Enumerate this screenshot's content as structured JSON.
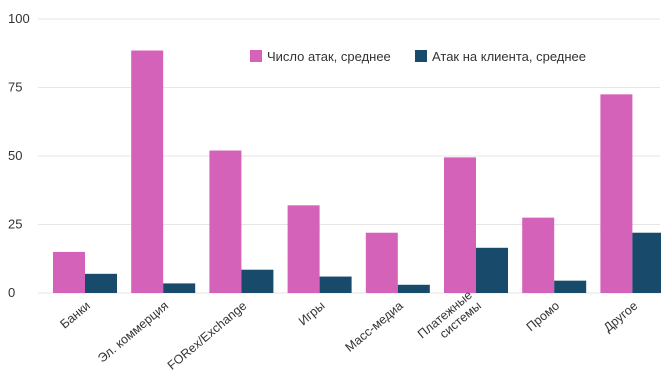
{
  "chart_data": {
    "type": "bar",
    "categories": [
      "Банки",
      "Эл. коммерция",
      "FORex/Exchange",
      "Игры",
      "Масс-медиа",
      "Платежные системы",
      "Промо",
      "Другое"
    ],
    "category_lines": [
      [
        "Банки"
      ],
      [
        "Эл. коммерция"
      ],
      [
        "FORex/Exchange"
      ],
      [
        "Игры"
      ],
      [
        "Масс-медиа"
      ],
      [
        "Платежные",
        "системы"
      ],
      [
        "Промо"
      ],
      [
        "Другое"
      ]
    ],
    "series": [
      {
        "name": "Число атак, среднее",
        "color": "#d462b8",
        "values": [
          15,
          88.5,
          52,
          32,
          22,
          49.5,
          27.5,
          72.5
        ]
      },
      {
        "name": "Атак на клиента, среднее",
        "color": "#174a6b",
        "values": [
          7,
          3.5,
          8.5,
          6,
          3,
          16.5,
          4.5,
          22
        ]
      }
    ],
    "y_ticks": [
      0,
      25,
      50,
      75,
      100
    ],
    "ylim": [
      0,
      100
    ],
    "grid": true,
    "legend_position": "top-right"
  }
}
